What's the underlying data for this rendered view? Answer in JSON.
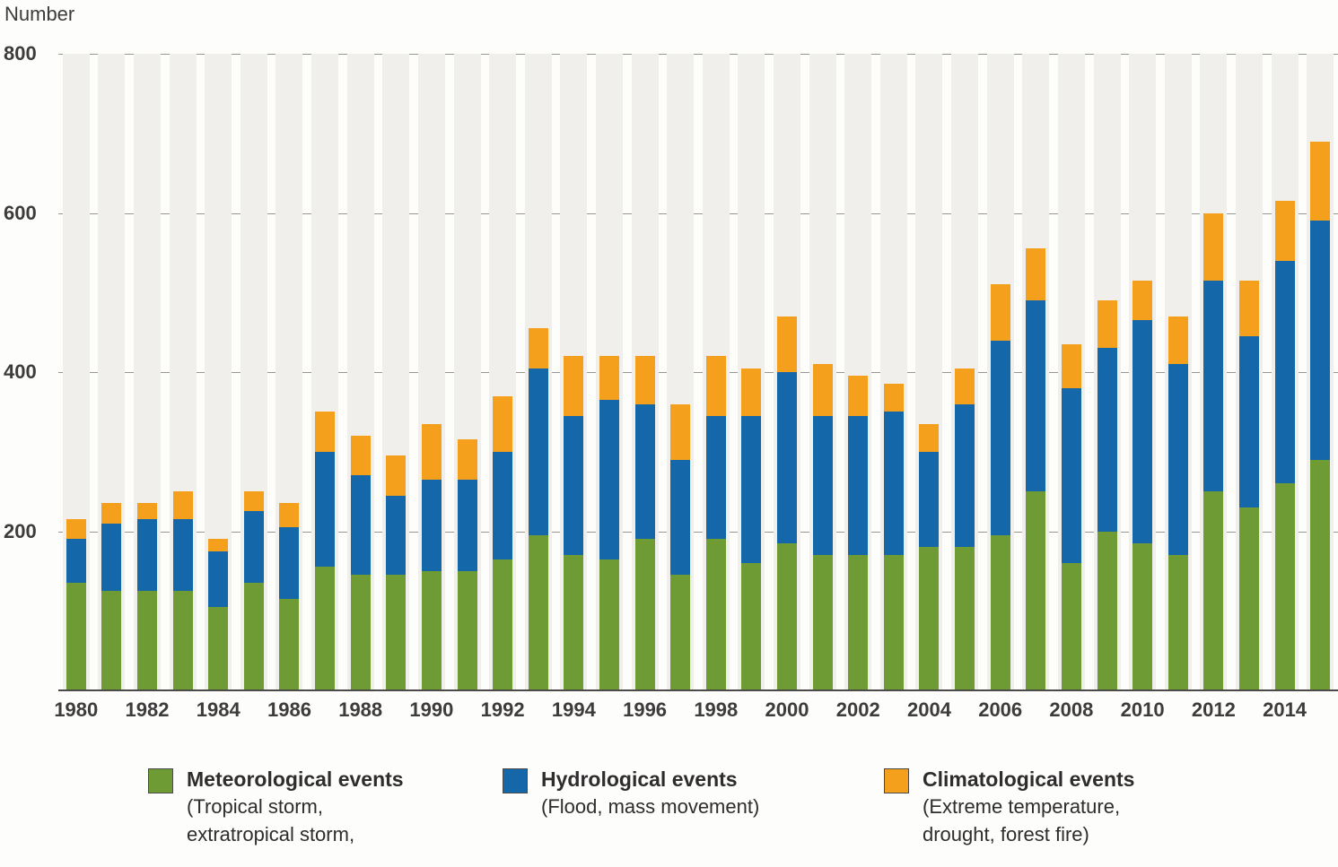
{
  "chart": {
    "y_axis_title": "Number"
  },
  "chart_data": {
    "type": "bar",
    "stacked": true,
    "title": "",
    "xlabel": "",
    "ylabel": "Number",
    "ylim": [
      0,
      800
    ],
    "y_ticks": [
      200,
      400,
      600,
      800
    ],
    "grid": true,
    "legend_position": "bottom",
    "categories": [
      1980,
      1981,
      1982,
      1983,
      1984,
      1985,
      1986,
      1987,
      1988,
      1989,
      1990,
      1991,
      1992,
      1993,
      1994,
      1995,
      1996,
      1997,
      1998,
      1999,
      2000,
      2001,
      2002,
      2003,
      2004,
      2005,
      2006,
      2007,
      2008,
      2009,
      2010,
      2011,
      2012,
      2013,
      2014,
      2015
    ],
    "x_tick_labels": [
      "1980",
      "1982",
      "1984",
      "1986",
      "1988",
      "1990",
      "1992",
      "1994",
      "1996",
      "1998",
      "2000",
      "2002",
      "2004",
      "2006",
      "2008",
      "2010",
      "2012",
      "2014"
    ],
    "series": [
      {
        "name": "Meteorological events",
        "color": "#6e9b34",
        "values": [
          135,
          125,
          125,
          125,
          105,
          135,
          115,
          155,
          145,
          145,
          150,
          150,
          165,
          195,
          170,
          165,
          190,
          145,
          190,
          160,
          185,
          170,
          170,
          170,
          180,
          180,
          195,
          250,
          160,
          200,
          185,
          170,
          250,
          230,
          260,
          290
        ]
      },
      {
        "name": "Hydrological events",
        "color": "#1467a8",
        "values": [
          55,
          85,
          90,
          90,
          70,
          90,
          90,
          145,
          125,
          100,
          115,
          115,
          135,
          210,
          175,
          200,
          170,
          145,
          155,
          185,
          215,
          175,
          175,
          180,
          120,
          180,
          245,
          240,
          220,
          230,
          280,
          240,
          265,
          215,
          280,
          300
        ]
      },
      {
        "name": "Climatological events",
        "color": "#f5a01d",
        "values": [
          25,
          25,
          20,
          35,
          15,
          25,
          30,
          50,
          50,
          50,
          70,
          50,
          70,
          50,
          75,
          55,
          60,
          70,
          75,
          60,
          70,
          65,
          50,
          35,
          35,
          45,
          70,
          65,
          55,
          60,
          50,
          60,
          85,
          70,
          75,
          100
        ]
      }
    ]
  },
  "legend": {
    "items": [
      {
        "label": "Meteorological events",
        "desc_lines": [
          "(Tropical storm,",
          "extratropical storm,"
        ],
        "color": "#6e9b34"
      },
      {
        "label": "Hydrological events",
        "desc_lines": [
          "(Flood, mass movement)"
        ],
        "color": "#1467a8"
      },
      {
        "label": "Climatological events",
        "desc_lines": [
          "(Extreme temperature,",
          "drought, forest fire)"
        ],
        "color": "#f5a01d"
      }
    ]
  }
}
